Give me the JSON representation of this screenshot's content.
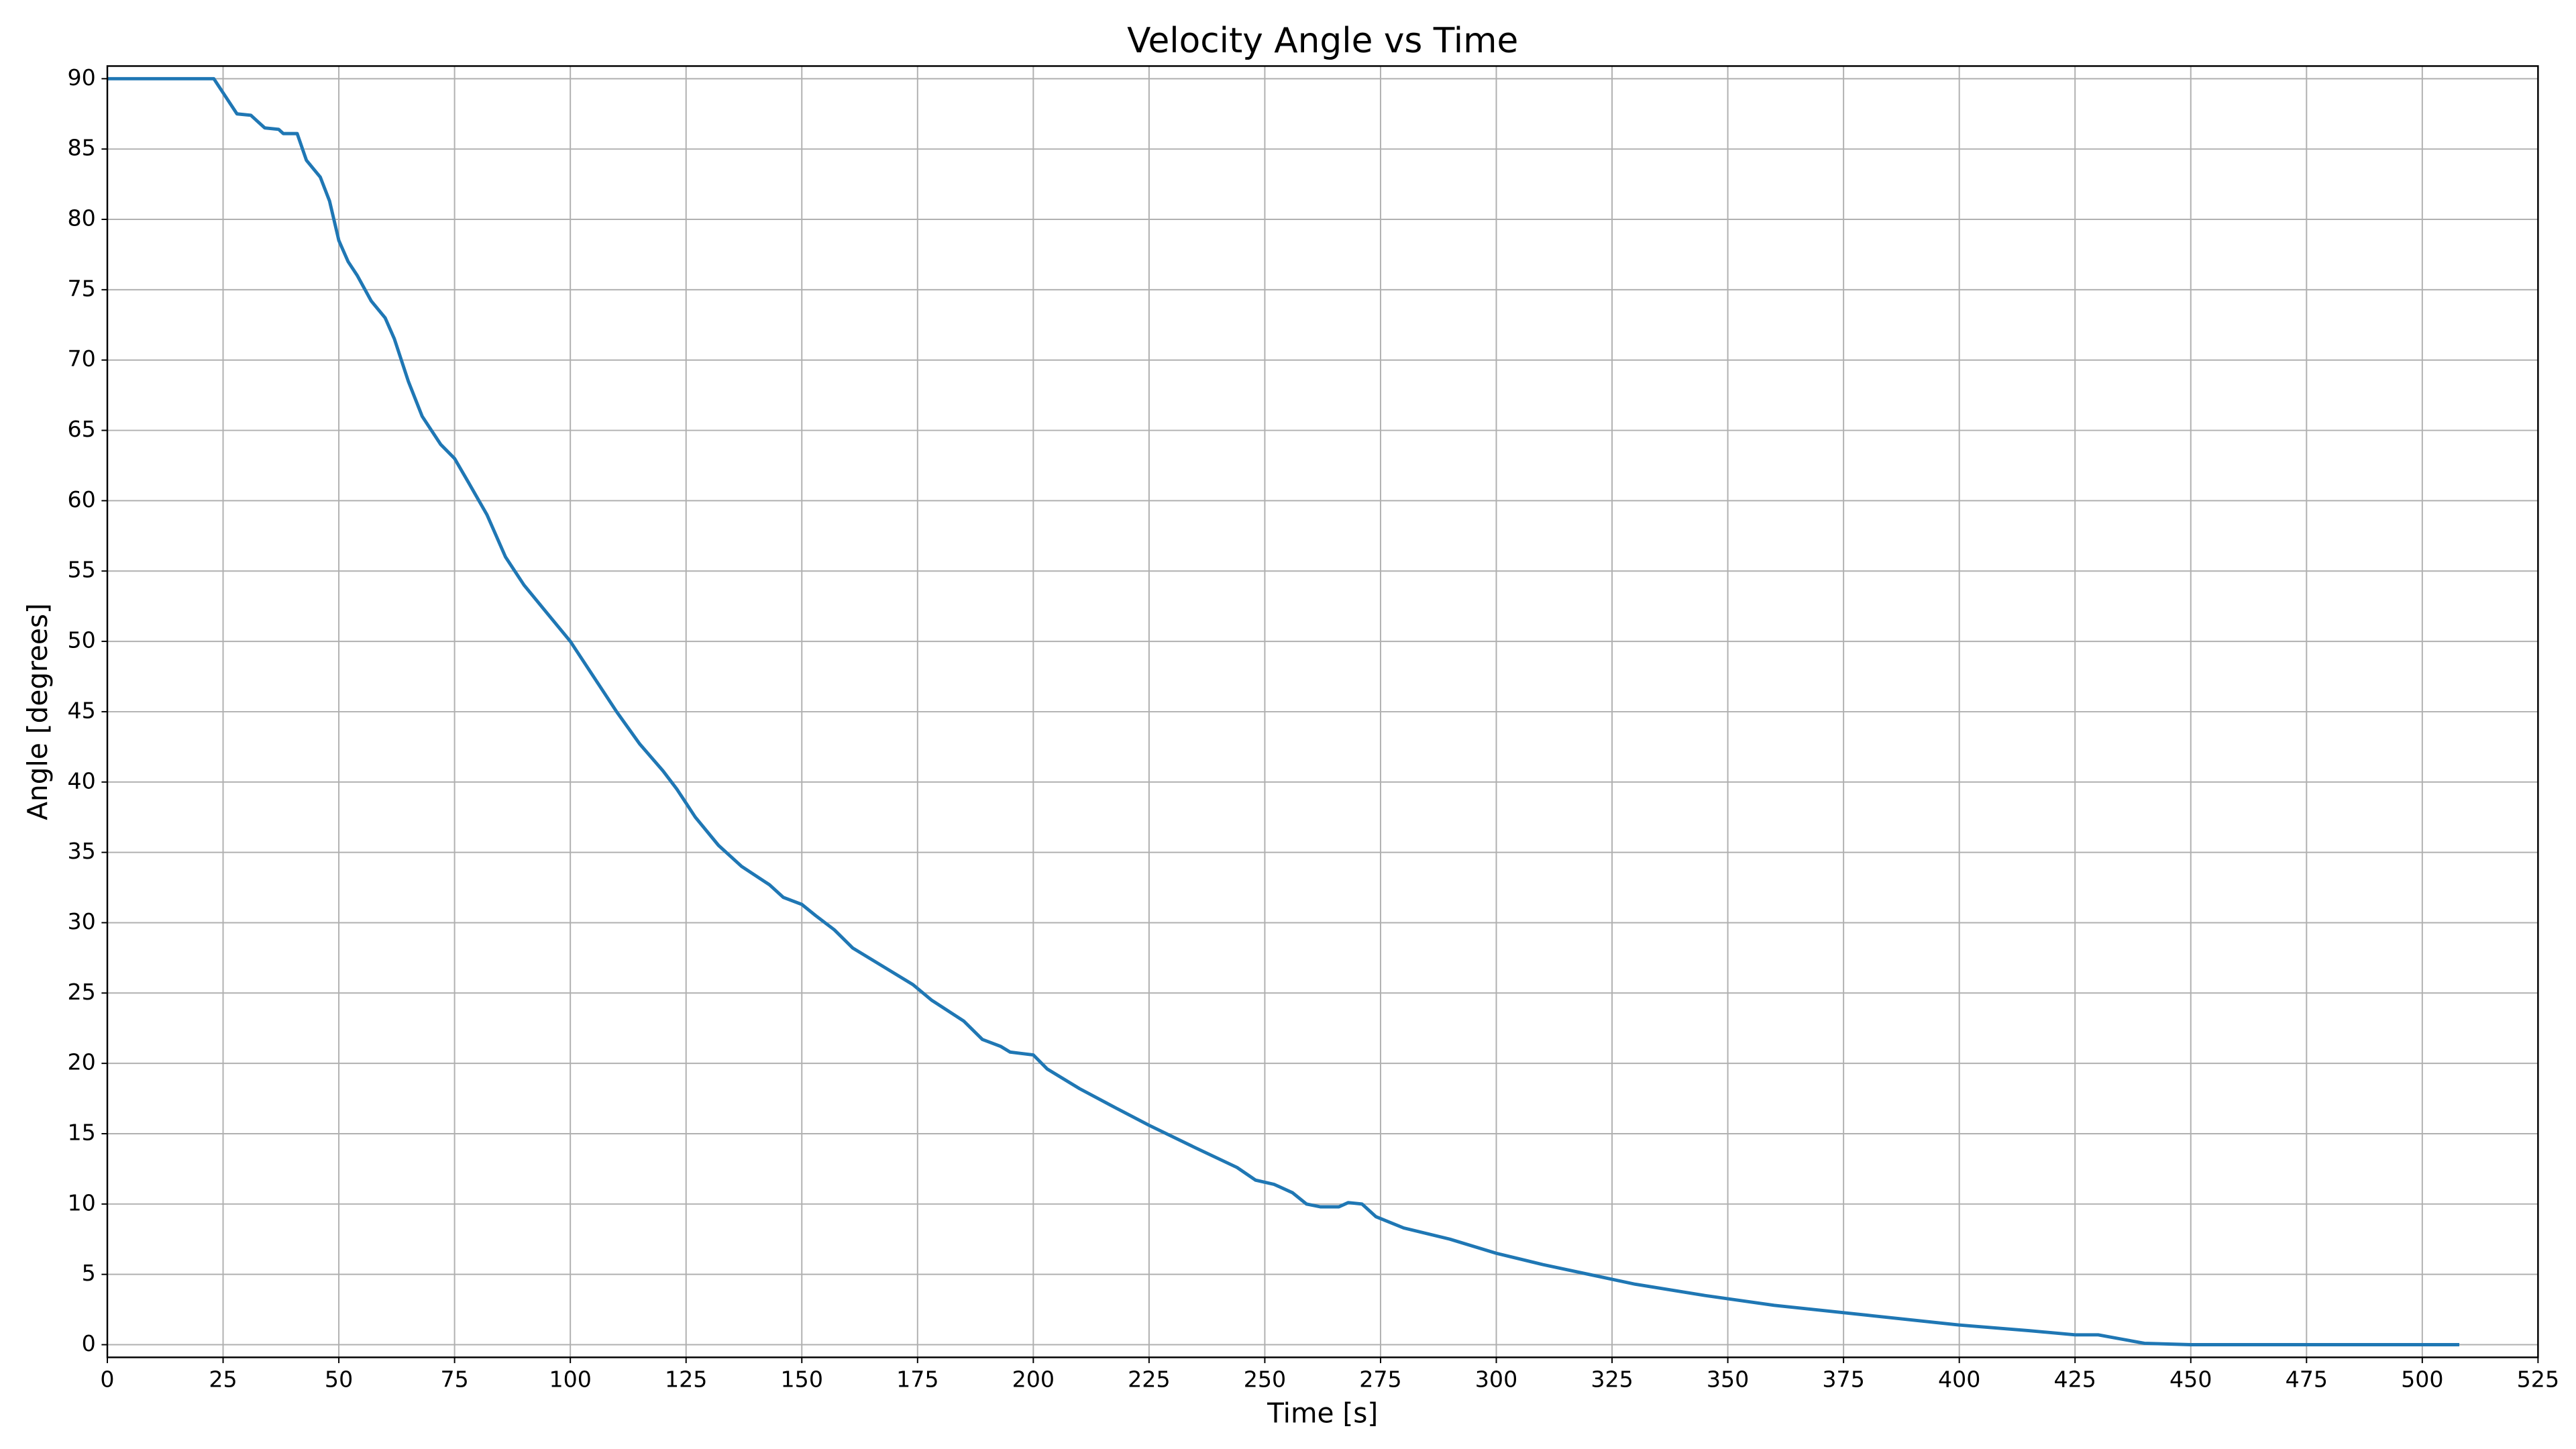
{
  "chart_data": {
    "type": "line",
    "title": "Velocity Angle vs Time",
    "x_label": "Time [s]",
    "y_label": "Angle [degrees]",
    "x": [
      0,
      23,
      25,
      28,
      31,
      34,
      37,
      38,
      41,
      43,
      46,
      48,
      50,
      52,
      54,
      57,
      60,
      62,
      65,
      68,
      72,
      75,
      78,
      82,
      86,
      90,
      95,
      100,
      105,
      110,
      115,
      120,
      123,
      127,
      132,
      137,
      143,
      146,
      150,
      153,
      157,
      161,
      168,
      174,
      178,
      185,
      189,
      193,
      195,
      200,
      203,
      210,
      218,
      225,
      235,
      244,
      248,
      252,
      256,
      259,
      262,
      266,
      268,
      271,
      274,
      280,
      290,
      300,
      310,
      320,
      330,
      345,
      360,
      380,
      400,
      415,
      425,
      430,
      435,
      440,
      450,
      480,
      508
    ],
    "series": [
      {
        "name": "Velocity Angle",
        "color": "#1f77b4",
        "values": [
          90,
          90,
          89,
          87.5,
          87.4,
          86.5,
          86.4,
          86.1,
          86.1,
          84.2,
          83,
          81.3,
          78.5,
          77,
          76,
          74.2,
          73,
          71.5,
          68.5,
          66,
          64,
          63,
          61.3,
          59,
          56,
          54,
          52,
          50,
          47.5,
          45,
          42.7,
          40.8,
          39.5,
          37.5,
          35.5,
          34,
          32.7,
          31.8,
          31.3,
          30.5,
          29.5,
          28.2,
          26.8,
          25.6,
          24.5,
          23,
          21.7,
          21.2,
          20.8,
          20.6,
          19.6,
          18.2,
          16.8,
          15.6,
          14,
          12.6,
          11.7,
          11.4,
          10.8,
          10,
          9.8,
          9.8,
          10.1,
          10,
          9.1,
          8.3,
          7.5,
          6.5,
          5.7,
          5,
          4.3,
          3.5,
          2.8,
          2.1,
          1.4,
          1,
          0.7,
          0.7,
          0.4,
          0.1,
          0,
          0,
          0
        ]
      }
    ],
    "xlim": [
      0,
      525
    ],
    "ylim": [
      -0.9,
      90.9
    ],
    "xticks": [
      0,
      25,
      50,
      75,
      100,
      125,
      150,
      175,
      200,
      225,
      250,
      275,
      300,
      325,
      350,
      375,
      400,
      425,
      450,
      475,
      500,
      525
    ],
    "yticks": [
      0,
      5,
      10,
      15,
      20,
      25,
      30,
      35,
      40,
      45,
      50,
      55,
      60,
      65,
      70,
      75,
      80,
      85,
      90
    ],
    "grid": true
  }
}
